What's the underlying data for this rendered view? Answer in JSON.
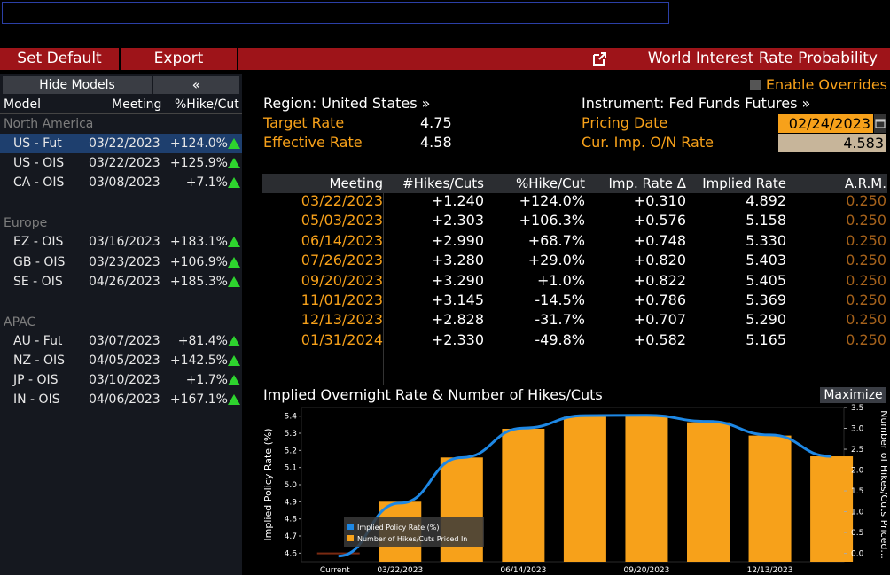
{
  "toolbar": {
    "set_default": "Set Default",
    "export": "Export",
    "title": "World Interest Rate Probability"
  },
  "left_panel": {
    "hide_models": "Hide Models",
    "collapse": "«",
    "headers": {
      "model": "Model",
      "meeting": "Meeting",
      "hike": "%Hike/Cut"
    },
    "groups": [
      {
        "name": "North America",
        "rows": [
          {
            "model": "US - Fut",
            "meeting": "03/22/2023",
            "pct": "+124.0%",
            "selected": true
          },
          {
            "model": "US - OIS",
            "meeting": "03/22/2023",
            "pct": "+125.9%"
          },
          {
            "model": "CA - OIS",
            "meeting": "03/08/2023",
            "pct": "+7.1%"
          }
        ]
      },
      {
        "name": "Europe",
        "rows": [
          {
            "model": "EZ - OIS",
            "meeting": "03/16/2023",
            "pct": "+183.1%"
          },
          {
            "model": "GB - OIS",
            "meeting": "03/23/2023",
            "pct": "+106.9%"
          },
          {
            "model": "SE - OIS",
            "meeting": "04/26/2023",
            "pct": "+185.3%"
          }
        ]
      },
      {
        "name": "APAC",
        "rows": [
          {
            "model": "AU - Fut",
            "meeting": "03/07/2023",
            "pct": "+81.4%"
          },
          {
            "model": "NZ - OIS",
            "meeting": "04/05/2023",
            "pct": "+142.5%"
          },
          {
            "model": "JP - OIS",
            "meeting": "03/10/2023",
            "pct": "+1.7%"
          },
          {
            "model": "IN - OIS",
            "meeting": "04/06/2023",
            "pct": "+167.1%"
          }
        ]
      }
    ]
  },
  "info": {
    "region": "Region: United States »",
    "target_rate_label": "Target Rate",
    "target_rate": "4.75",
    "effective_rate_label": "Effective Rate",
    "effective_rate": "4.58",
    "instrument": "Instrument: Fed Funds Futures »",
    "enable_overrides": "Enable Overrides",
    "pricing_date_label": "Pricing Date",
    "pricing_date": "02/24/2023",
    "cur_imp_label": "Cur. Imp. O/N Rate",
    "cur_imp": "4.583"
  },
  "table": {
    "headers": [
      "Meeting",
      "#Hikes/Cuts",
      "%Hike/Cut",
      "Imp. Rate Δ",
      "Implied Rate",
      "A.R.M."
    ],
    "rows": [
      [
        "03/22/2023",
        "+1.240",
        "+124.0%",
        "+0.310",
        "4.892",
        "0.250"
      ],
      [
        "05/03/2023",
        "+2.303",
        "+106.3%",
        "+0.576",
        "5.158",
        "0.250"
      ],
      [
        "06/14/2023",
        "+2.990",
        "+68.7%",
        "+0.748",
        "5.330",
        "0.250"
      ],
      [
        "07/26/2023",
        "+3.280",
        "+29.0%",
        "+0.820",
        "5.403",
        "0.250"
      ],
      [
        "09/20/2023",
        "+3.290",
        "+1.0%",
        "+0.822",
        "5.405",
        "0.250"
      ],
      [
        "11/01/2023",
        "+3.145",
        "-14.5%",
        "+0.786",
        "5.369",
        "0.250"
      ],
      [
        "12/13/2023",
        "+2.828",
        "-31.7%",
        "+0.707",
        "5.290",
        "0.250"
      ],
      [
        "01/31/2024",
        "+2.330",
        "-49.8%",
        "+0.582",
        "5.165",
        "0.250"
      ]
    ]
  },
  "chart": {
    "title": "Implied Overnight Rate & Number of Hikes/Cuts",
    "maximize": "Maximize"
  },
  "chart_data": {
    "type": "bar",
    "categories": [
      "Current",
      "03/22/2023",
      "05/03/2023",
      "06/14/2023",
      "07/26/2023",
      "09/20/2023",
      "11/01/2023",
      "12/13/2023",
      "01/31/2024"
    ],
    "x_tick_labels": [
      "Current",
      "03/22/2023",
      "06/14/2023",
      "09/20/2023",
      "12/13/2023"
    ],
    "series": [
      {
        "name": "Implied Policy Rate (%)",
        "type": "line",
        "axis": "left",
        "color": "#1e88e5",
        "values": [
          4.583,
          4.892,
          5.158,
          5.33,
          5.403,
          5.405,
          5.369,
          5.29,
          5.165
        ]
      },
      {
        "name": "Number of Hikes/Cuts Priced In",
        "type": "bar",
        "axis": "right",
        "color": "#f7a11a",
        "values": [
          0,
          1.24,
          2.303,
          2.99,
          3.28,
          3.29,
          3.145,
          2.828,
          2.33
        ]
      }
    ],
    "ylabel": "Implied Policy Rate (%)",
    "y2label": "Number of Hikes/Cuts Priced...",
    "ylim": [
      4.55,
      5.45
    ],
    "yticks": [
      "4.6",
      "4.7",
      "4.8",
      "4.9",
      "5.0",
      "5.1",
      "5.2",
      "5.3",
      "5.4"
    ],
    "y2lim": [
      -0.2,
      3.5
    ],
    "y2ticks": [
      "0.0",
      "0.5",
      "1.0",
      "1.5",
      "2.0",
      "2.5",
      "3.0",
      "3.5"
    ],
    "legend_placement": "bottom-left",
    "grid": false
  }
}
